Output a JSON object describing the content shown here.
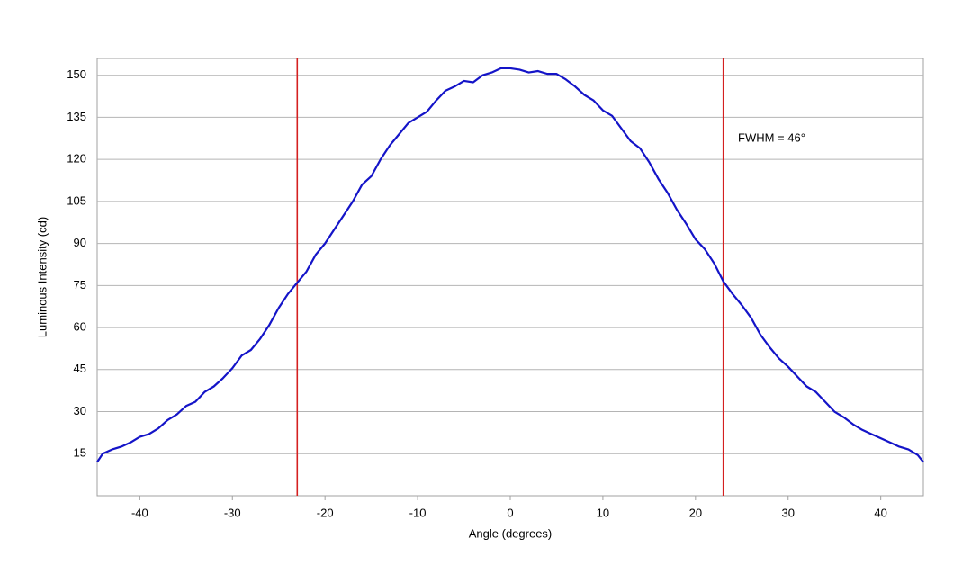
{
  "chart_data": {
    "type": "line",
    "xlabel": "Angle (degrees)",
    "ylabel": "Luminous Intensity (cd)",
    "annotation": "FWHM = 46°",
    "x": [
      -44.6,
      -44,
      -43,
      -42,
      -41,
      -40,
      -39,
      -38,
      -37,
      -36,
      -35,
      -34,
      -33,
      -32,
      -31,
      -30,
      -29,
      -28,
      -27,
      -26,
      -25,
      -24,
      -23,
      -22,
      -21,
      -20,
      -19,
      -18,
      -17,
      -16,
      -15,
      -14,
      -13,
      -12,
      -11,
      -10,
      -9,
      -8,
      -7,
      -6,
      -5,
      -4,
      -3,
      -2,
      -1,
      0,
      1,
      2,
      3,
      4,
      5,
      6,
      7,
      8,
      9,
      10,
      11,
      12,
      13,
      14,
      15,
      16,
      17,
      18,
      19,
      20,
      21,
      22,
      23,
      24,
      25,
      26,
      27,
      28,
      29,
      30,
      31,
      32,
      33,
      34,
      35,
      36,
      37,
      38,
      39,
      40,
      41,
      42,
      43,
      44,
      44.6
    ],
    "series": [
      {
        "color": "#1414c8",
        "values": [
          12,
          15,
          16.5,
          17.5,
          19,
          21,
          22,
          24,
          27,
          29,
          32,
          33.5,
          37,
          39,
          42,
          45.5,
          50,
          52,
          56,
          61,
          67,
          72,
          76,
          80,
          86,
          90,
          95,
          100,
          105,
          111,
          114,
          120,
          125,
          129,
          133,
          135,
          137,
          141,
          144.5,
          146,
          148,
          147.5,
          150,
          151,
          152.5,
          152.5,
          152,
          151,
          151.5,
          150.5,
          150.5,
          148.5,
          146,
          143,
          141,
          137.5,
          135.5,
          131,
          126.5,
          124,
          119,
          113,
          108,
          102,
          97,
          91.5,
          88,
          83,
          76.5,
          72,
          68,
          63.5,
          57.5,
          53,
          49,
          46,
          42.5,
          39,
          37,
          33.5,
          30,
          28,
          25.5,
          23.5,
          22,
          20.5,
          19,
          17.5,
          16.5,
          14.5,
          12
        ]
      }
    ],
    "vlines": [
      -23,
      23
    ],
    "vline_color": "#d42020",
    "xlim": [
      -44.6,
      44.6
    ],
    "ylim": [
      0,
      156
    ],
    "xticks": [
      -40,
      -30,
      -20,
      -10,
      0,
      10,
      20,
      30,
      40
    ],
    "yticks": [
      15,
      30,
      45,
      60,
      75,
      90,
      105,
      120,
      135,
      150
    ],
    "grid": true
  }
}
